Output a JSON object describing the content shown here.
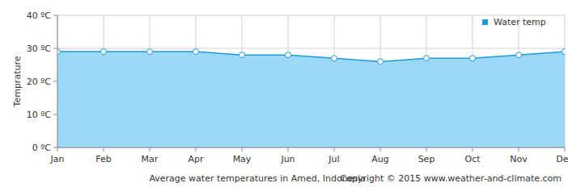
{
  "chart_data": {
    "type": "area",
    "title": "Average water temperatures in Amed, Indonesia",
    "annotations": [
      "Copyright © 2015 www.weather-and-climate.com"
    ],
    "y_label": "Temprature",
    "categories": [
      "Jan",
      "Feb",
      "Mar",
      "Apr",
      "May",
      "Jun",
      "Jul",
      "Aug",
      "Sep",
      "Oct",
      "Nov",
      "Dec"
    ],
    "series": [
      {
        "name": "Water temp",
        "color": "#1a9ae0",
        "marker": "circle",
        "values": [
          29,
          29,
          29,
          29,
          28,
          28,
          27,
          26,
          27,
          27,
          28,
          29
        ]
      }
    ],
    "ylim": [
      0,
      40
    ],
    "yticks": [
      {
        "value": 0,
        "label": "0 ºC"
      },
      {
        "value": 10,
        "label": "10 ºC"
      },
      {
        "value": 20,
        "label": "20 ºC"
      },
      {
        "value": 30,
        "label": "30 ºC"
      },
      {
        "value": 40,
        "label": "40 ºC"
      }
    ],
    "grid": true,
    "legend": "top-right"
  }
}
